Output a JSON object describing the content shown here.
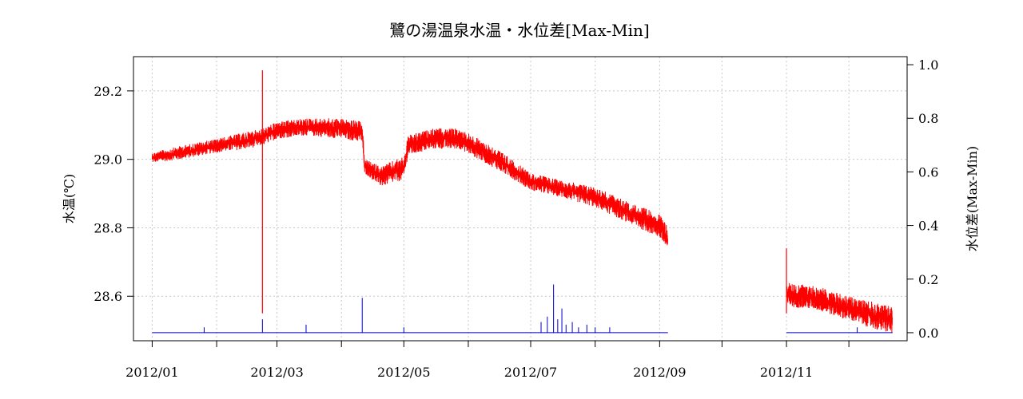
{
  "chart_data": {
    "type": "line",
    "title": "鷺の湯温泉水温・水位差[Max-Min]",
    "ylabel_left": "水温(℃)",
    "ylabel_right": "水位差(Max-Min)",
    "xlim": [
      "2011-12-23",
      "2012-12-29"
    ],
    "ylim_left": [
      28.47,
      29.3
    ],
    "ylim_right": [
      -0.03,
      1.03
    ],
    "grid": true,
    "x_ticks": [
      {
        "date": "2012-01-01",
        "label": "2012/01"
      },
      {
        "date": "2012-02-01",
        "label": ""
      },
      {
        "date": "2012-03-01",
        "label": "2012/03"
      },
      {
        "date": "2012-04-01",
        "label": ""
      },
      {
        "date": "2012-05-01",
        "label": "2012/05"
      },
      {
        "date": "2012-06-01",
        "label": ""
      },
      {
        "date": "2012-07-01",
        "label": "2012/07"
      },
      {
        "date": "2012-08-01",
        "label": ""
      },
      {
        "date": "2012-09-01",
        "label": "2012/09"
      },
      {
        "date": "2012-10-01",
        "label": ""
      },
      {
        "date": "2012-11-01",
        "label": "2012/11"
      },
      {
        "date": "2012-12-01",
        "label": ""
      }
    ],
    "y_ticks_left": [
      {
        "value": 28.6,
        "label": "28.6"
      },
      {
        "value": 28.8,
        "label": "28.8"
      },
      {
        "value": 29.0,
        "label": "29.0"
      },
      {
        "value": 29.2,
        "label": "29.2"
      }
    ],
    "y_ticks_right": [
      {
        "value": 0.0,
        "label": "0.0"
      },
      {
        "value": 0.2,
        "label": "0.2"
      },
      {
        "value": 0.4,
        "label": "0.4"
      },
      {
        "value": 0.6,
        "label": "0.6"
      },
      {
        "value": 0.8,
        "label": "0.8"
      },
      {
        "value": 1.0,
        "label": "1.0"
      }
    ],
    "series": [
      {
        "axis": "left",
        "color": "#ff0000",
        "band": [
          {
            "date": "2012-01-01",
            "min": 28.99,
            "max": 29.02
          },
          {
            "date": "2012-01-15",
            "min": 29.0,
            "max": 29.04
          },
          {
            "date": "2012-02-01",
            "min": 29.02,
            "max": 29.06
          },
          {
            "date": "2012-02-15",
            "min": 29.03,
            "max": 29.08
          },
          {
            "date": "2012-02-23",
            "min": 29.04,
            "max": 29.09
          },
          {
            "date": "2012-03-01",
            "min": 29.06,
            "max": 29.11
          },
          {
            "date": "2012-03-15",
            "min": 29.07,
            "max": 29.12
          },
          {
            "date": "2012-04-01",
            "min": 29.06,
            "max": 29.12
          },
          {
            "date": "2012-04-11",
            "min": 29.05,
            "max": 29.11
          },
          {
            "date": "2012-04-12",
            "min": 28.96,
            "max": 29.0
          },
          {
            "date": "2012-04-20",
            "min": 28.92,
            "max": 28.98
          },
          {
            "date": "2012-05-01",
            "min": 28.94,
            "max": 29.01
          },
          {
            "date": "2012-05-03",
            "min": 29.01,
            "max": 29.07
          },
          {
            "date": "2012-05-15",
            "min": 29.03,
            "max": 29.09
          },
          {
            "date": "2012-05-28",
            "min": 29.03,
            "max": 29.09
          },
          {
            "date": "2012-06-15",
            "min": 28.97,
            "max": 29.03
          },
          {
            "date": "2012-07-01",
            "min": 28.91,
            "max": 28.96
          },
          {
            "date": "2012-07-15",
            "min": 28.89,
            "max": 28.94
          },
          {
            "date": "2012-08-01",
            "min": 28.86,
            "max": 28.92
          },
          {
            "date": "2012-08-15",
            "min": 28.82,
            "max": 28.88
          },
          {
            "date": "2012-09-01",
            "min": 28.77,
            "max": 28.84
          },
          {
            "date": "2012-09-05",
            "min": 28.73,
            "max": 28.8
          },
          {
            "gap": true
          },
          {
            "date": "2012-11-01",
            "min": 28.57,
            "max": 28.64
          },
          {
            "date": "2012-11-15",
            "min": 28.56,
            "max": 28.63
          },
          {
            "date": "2012-12-01",
            "min": 28.53,
            "max": 28.6
          },
          {
            "date": "2012-12-15",
            "min": 28.5,
            "max": 28.58
          },
          {
            "date": "2012-12-22",
            "min": 28.49,
            "max": 28.57
          }
        ],
        "spikes": [
          {
            "date": "2012-02-23",
            "min": 28.55,
            "max": 29.26
          },
          {
            "date": "2012-11-01",
            "min": 28.55,
            "max": 28.74
          }
        ]
      },
      {
        "axis": "right",
        "color": "#0000cc",
        "baseline": 0.0,
        "segments": [
          [
            "2012-01-01",
            "2012-09-05"
          ],
          [
            "2012-11-01",
            "2012-12-22"
          ]
        ],
        "spikes": [
          {
            "date": "2012-01-26",
            "value": 0.02
          },
          {
            "date": "2012-02-23",
            "value": 0.05
          },
          {
            "date": "2012-03-15",
            "value": 0.03
          },
          {
            "date": "2012-04-11",
            "value": 0.13
          },
          {
            "date": "2012-05-01",
            "value": 0.02
          },
          {
            "date": "2012-07-06",
            "value": 0.04
          },
          {
            "date": "2012-07-09",
            "value": 0.06
          },
          {
            "date": "2012-07-12",
            "value": 0.18
          },
          {
            "date": "2012-07-14",
            "value": 0.05
          },
          {
            "date": "2012-07-16",
            "value": 0.09
          },
          {
            "date": "2012-07-18",
            "value": 0.03
          },
          {
            "date": "2012-07-21",
            "value": 0.04
          },
          {
            "date": "2012-07-24",
            "value": 0.02
          },
          {
            "date": "2012-07-28",
            "value": 0.03
          },
          {
            "date": "2012-08-01",
            "value": 0.02
          },
          {
            "date": "2012-08-08",
            "value": 0.02
          },
          {
            "date": "2012-12-05",
            "value": 0.02
          }
        ]
      }
    ]
  }
}
